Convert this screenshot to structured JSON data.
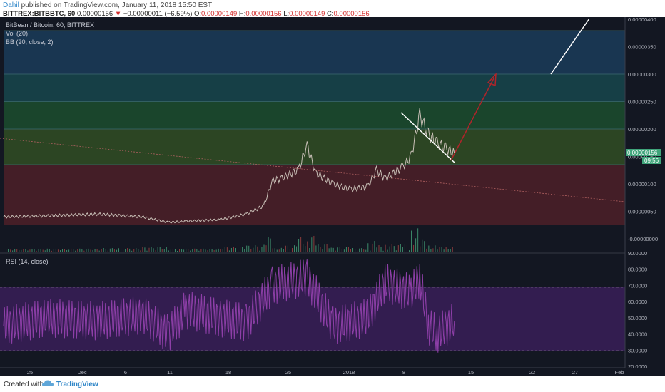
{
  "header": {
    "author": "Dahil",
    "published": " published on TradingView.com, January 11, 2018 15:50 EST",
    "symbol": "BITTREX:BITBBTC, 60",
    "last": "0.00000156",
    "arrow": "▼",
    "change": "−0.00000011 (−6.59%)",
    "o_label": "O:",
    "o": "0.00000149",
    "h_label": "H:",
    "h": "0.00000156",
    "l_label": "L:",
    "l": "0.00000149",
    "c_label": "C:",
    "c": "0.00000156"
  },
  "legend": {
    "title": "BitBean / Bitcoin, 60, BITTREX",
    "vol": "Vol (20)",
    "bb": "BB (20, close, 2)",
    "rsi": "RSI (14, close)"
  },
  "price_badge": {
    "value": "0.00000156",
    "timer": "09:56"
  },
  "colors": {
    "background": "#131722",
    "price_line": "#c8bfb6",
    "rsi_line": "#8e3fa8",
    "trend_line": "#ffffff",
    "target_arrow": "#b0242a",
    "badge": "#3fa47a"
  },
  "chart_data": {
    "type": "line",
    "price_axis_ticks": [
      "0.00000400",
      "0.00000350",
      "0.00000300",
      "0.00000250",
      "0.00000200",
      "0.00000150",
      "0.00000100",
      "0.00000050",
      "-0.00000000"
    ],
    "rsi_axis_ticks": [
      "90.0000",
      "80.0000",
      "70.0000",
      "60.0000",
      "50.0000",
      "40.0000",
      "30.0000",
      "20.0000"
    ],
    "x_tick_labels": [
      "25",
      "Dec",
      "6",
      "11",
      "18",
      "25",
      "2018",
      "8",
      "15",
      "22",
      "27",
      "Feb"
    ],
    "fib_zones": [
      {
        "from": 3.8e-06,
        "to": 3e-06,
        "color": "#1b3a57"
      },
      {
        "from": 3e-06,
        "to": 2.5e-06,
        "color": "#17444a"
      },
      {
        "from": 2.5e-06,
        "to": 2e-06,
        "color": "#1c4a2e"
      },
      {
        "from": 2e-06,
        "to": 1.35e-06,
        "color": "#304a24"
      },
      {
        "from": 1.35e-06,
        "to": -2e-07,
        "color": "#4a1f28"
      }
    ],
    "price_series": {
      "name": "BitBean / Bitcoin",
      "x": [
        "Nov 20",
        "Nov 25",
        "Dec 1",
        "Dec 6",
        "Dec 9",
        "Dec 11",
        "Dec 15",
        "Dec 18",
        "Dec 20",
        "Dec 21",
        "Dec 22",
        "Dec 24",
        "Dec 25",
        "Dec 26",
        "Dec 28",
        "Dec 30",
        "Jan 1",
        "Jan 2",
        "Jan 3",
        "Jan 5",
        "Jan 6",
        "Jan 7",
        "Jan 8",
        "Jan 9",
        "Jan 10",
        "Jan 11"
      ],
      "values": [
        4e-07,
        4.2e-07,
        4.5e-07,
        4e-07,
        3e-07,
        3.2e-07,
        3.5e-07,
        4.5e-07,
        6e-07,
        1.05e-06,
        1.1e-06,
        1.25e-06,
        1.7e-06,
        1.2e-06,
        1e-06,
        9e-07,
        9.5e-07,
        1.25e-06,
        1.1e-06,
        1.3e-06,
        1.5e-06,
        2.25e-06,
        1.9e-06,
        1.75e-06,
        1.65e-06,
        1.56e-06
      ]
    },
    "rsi_series": {
      "x": [
        "Nov 20",
        "Nov 25",
        "Dec 1",
        "Dec 6",
        "Dec 9",
        "Dec 11",
        "Dec 15",
        "Dec 18",
        "Dec 21",
        "Dec 25",
        "Dec 28",
        "Jan 1",
        "Jan 3",
        "Jan 6",
        "Jan 7",
        "Jan 8",
        "Jan 9",
        "Jan 11"
      ],
      "values": [
        45,
        50,
        48,
        52,
        40,
        55,
        50,
        47,
        70,
        75,
        45,
        50,
        72,
        65,
        75,
        45,
        40,
        48
      ]
    },
    "ylim": [
      -2e-07,
      4.1e-06
    ],
    "rsi_ylim": [
      20,
      90
    ]
  }
}
